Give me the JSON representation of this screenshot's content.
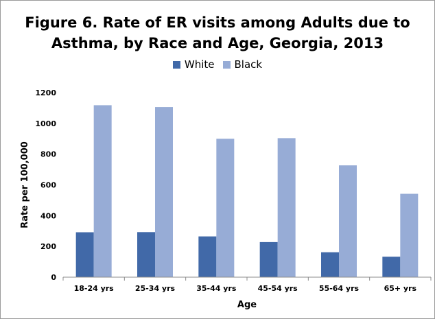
{
  "chart_data": {
    "type": "bar",
    "title_line1": "Figure 6. Rate of ER visits among Adults due to",
    "title_line2": "Asthma, by Race and Age, Georgia, 2013",
    "xlabel": "Age",
    "ylabel": "Rate per 100,000",
    "ylim": [
      0,
      1200
    ],
    "yticks": [
      "0",
      "200",
      "400",
      "600",
      "800",
      "1000",
      "1200"
    ],
    "categories": [
      "18-24 yrs",
      "25-34 yrs",
      "35-44 yrs",
      "45-54 yrs",
      "55-64 yrs",
      "65+ yrs"
    ],
    "series": [
      {
        "name": "White",
        "color": "#4169a8",
        "values": [
          292,
          293,
          265,
          228,
          162,
          133
        ]
      },
      {
        "name": "Black",
        "color": "#97acd6",
        "values": [
          1118,
          1106,
          900,
          904,
          727,
          542
        ]
      }
    ],
    "legend_position": "top",
    "grid": false
  }
}
